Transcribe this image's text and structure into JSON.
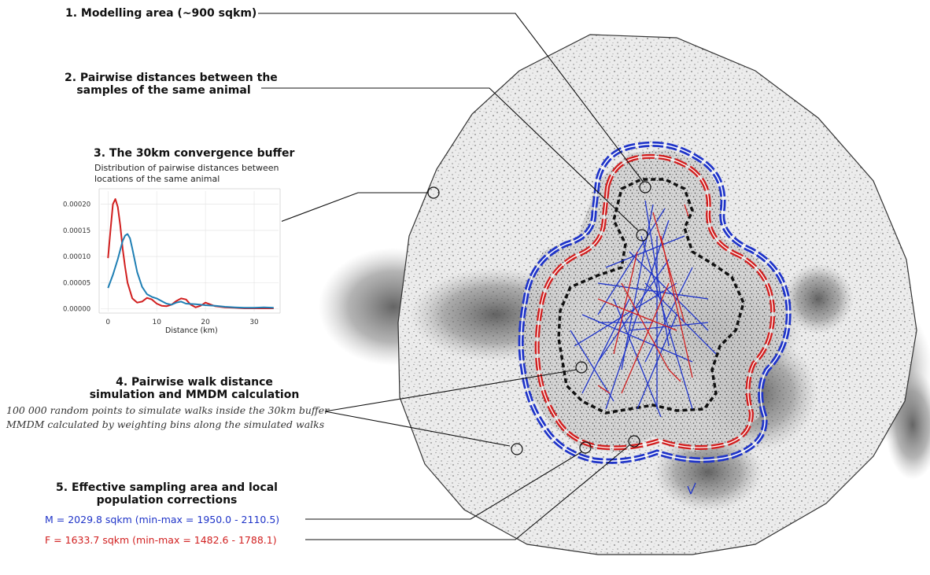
{
  "labels": {
    "step1": "1. Modelling area (~900 sqkm)",
    "step2_line1": "2. Pairwise distances between the",
    "step2_line2": "samples of the same animal",
    "step3": "3. The 30km convergence buffer",
    "step4_line1": "4. Pairwise walk distance",
    "step4_line2": "simulation and MMDM calculation",
    "step4_note1": "100 000 random points to simulate walks inside the 30km buffer",
    "step4_note2": "MMDM calculated by weighting bins along the simulated walks",
    "step5_line1": "5. Effective sampling area and local",
    "step5_line2": "population corrections",
    "result_m": "M = 2029.8 sqkm (min-max = 1950.0 - 2110.5)",
    "result_f": "F = 1633.7 sqkm (min-max = 1482.6 - 1788.1)"
  },
  "colors": {
    "male": "#1f34c8",
    "female": "#d11f1f",
    "boundary": "#111111",
    "terrain": "#888888"
  },
  "chart_data": {
    "type": "line",
    "title_line1": "Distribution of pairwise distances between",
    "title_line2": "locations of the same animal",
    "xlabel": "Distance (km)",
    "ylabel": "",
    "xlim": [
      -1.5,
      35
    ],
    "ylim": [
      -5e-06,
      0.000225
    ],
    "x_ticks": [
      "0",
      "10",
      "20",
      "30"
    ],
    "y_ticks": [
      "0.00000",
      "0.00005",
      "0.00010",
      "0.00015",
      "0.00020"
    ],
    "grid": true,
    "series": [
      {
        "color": "#d11f1f",
        "x": [
          0,
          0.5,
          1,
          1.5,
          2,
          2.5,
          3,
          3.5,
          4,
          5,
          6,
          7,
          8,
          9,
          10,
          11,
          12,
          13,
          14,
          15,
          16,
          17,
          18,
          19,
          20,
          22,
          24,
          26,
          28,
          30,
          32,
          34
        ],
        "values": [
          9.7e-05,
          0.00015,
          0.0002,
          0.00021,
          0.000195,
          0.00016,
          0.000115,
          8e-05,
          5e-05,
          2e-05,
          1.2e-05,
          1.4e-05,
          2.1e-05,
          1.8e-05,
          1e-05,
          6e-06,
          5e-06,
          8e-06,
          1.5e-05,
          2e-05,
          1.8e-05,
          8e-06,
          3e-06,
          6e-06,
          1.2e-05,
          5e-06,
          3e-06,
          2e-06,
          1e-06,
          1e-06,
          1e-06,
          1e-06
        ]
      },
      {
        "color": "#1f7fb4",
        "x": [
          0,
          1,
          2,
          3,
          3.5,
          4,
          4.5,
          5,
          6,
          7,
          8,
          9,
          10,
          11,
          12,
          13,
          14,
          15,
          16,
          18,
          20,
          22,
          24,
          26,
          28,
          30,
          32,
          34
        ],
        "values": [
          4e-05,
          6.5e-05,
          9.5e-05,
          0.00013,
          0.00014,
          0.000143,
          0.000135,
          0.000115,
          7e-05,
          4.2e-05,
          2.8e-05,
          2.3e-05,
          2e-05,
          1.5e-05,
          1e-05,
          8e-06,
          1.2e-05,
          1.4e-05,
          1e-05,
          9e-06,
          7e-06,
          6e-06,
          4e-06,
          3e-06,
          2e-06,
          2e-06,
          3e-06,
          2e-06
        ]
      }
    ]
  }
}
